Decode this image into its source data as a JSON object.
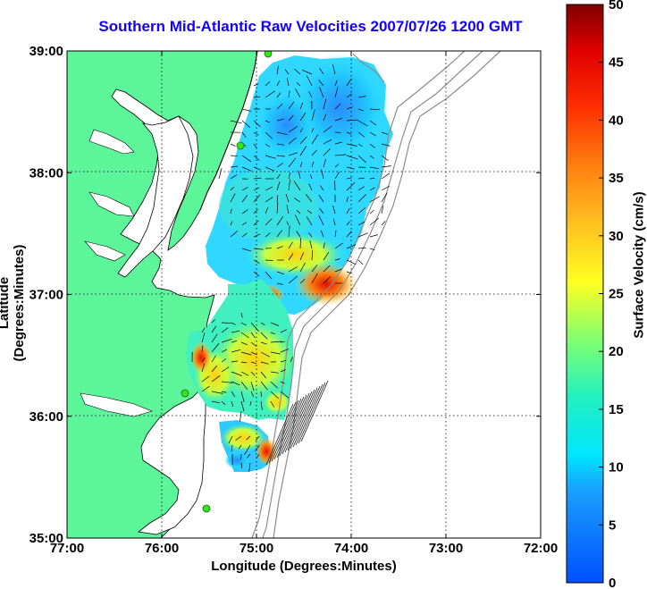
{
  "title": "Southern Mid-Atlantic Raw Velocities 2007/07/26 1200 GMT",
  "xlabel": "Longitude (Degrees:Minutes)",
  "ylabel": "Latitude (Degrees:Minutes)",
  "x_ticks": [
    "77:00",
    "76:00",
    "75:00",
    "74:00",
    "73:00",
    "72:00"
  ],
  "y_ticks": [
    "39:00",
    "38:00",
    "37:00",
    "36:00",
    "35:00"
  ],
  "colorbar": {
    "label": "Surface Velocity (cm/s)",
    "ticks": [
      "0",
      "5",
      "10",
      "15",
      "20",
      "25",
      "30",
      "35",
      "40",
      "45",
      "50"
    ],
    "min": 0,
    "max": 50
  },
  "colors": {
    "land": "#5cf59a",
    "title": "#1400ff",
    "bathymetry": "#8c8c8c",
    "stations": "#33e61a"
  }
}
